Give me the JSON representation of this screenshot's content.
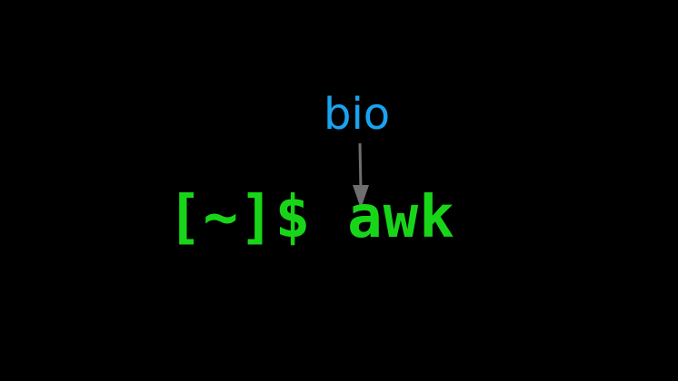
{
  "terminal": {
    "prompt": "[~]$",
    "command": "awk"
  },
  "annotation": {
    "label": "bio",
    "label_color": "#19a3f0",
    "arrow_color": "#6e6e6e"
  },
  "colors": {
    "background": "#000000",
    "terminal_text": "#19d519"
  }
}
